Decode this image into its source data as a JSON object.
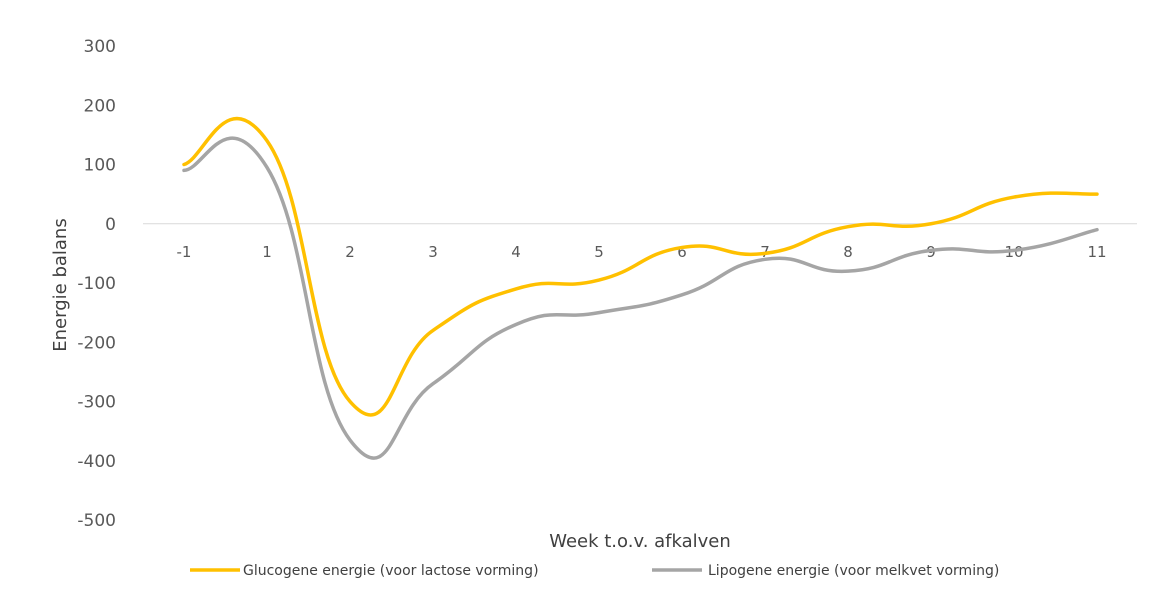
{
  "chart_data": {
    "type": "line",
    "title": "",
    "xlabel": "Week t.o.v. afkalven",
    "ylabel": "Energie balans",
    "categories": [
      "-1",
      "1",
      "2",
      "3",
      "4",
      "5",
      "6",
      "7",
      "8",
      "9",
      "10",
      "11"
    ],
    "ylim": [
      -500,
      300
    ],
    "yticks": [
      "300",
      "200",
      "100",
      "0",
      "-100",
      "-200",
      "-300",
      "-400",
      "-500"
    ],
    "grid": false,
    "legend_position": "bottom",
    "series": [
      {
        "name": "Glucogene energie (voor lactose vorming)",
        "color": "#FFC000",
        "values": [
          100,
          140,
          -300,
          -180,
          -110,
          -95,
          -40,
          -50,
          -5,
          0,
          45,
          50
        ]
      },
      {
        "name": "Lipogene energie (voor melkvet vorming)",
        "color": "#A5A5A5",
        "values": [
          90,
          95,
          -365,
          -270,
          -170,
          -150,
          -120,
          -60,
          -80,
          -45,
          -45,
          -10
        ]
      }
    ]
  }
}
